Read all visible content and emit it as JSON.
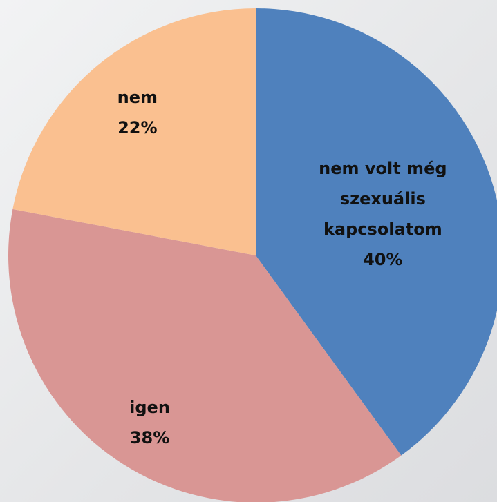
{
  "chart_data": {
    "type": "pie",
    "categories": [
      "nem volt még szexuális kapcsolatom",
      "igen",
      "nem"
    ],
    "values": [
      40,
      38,
      22
    ],
    "value_labels": [
      "40%",
      "38%",
      "22%"
    ],
    "colors": [
      "#4f81bd",
      "#d99694",
      "#fac090"
    ]
  }
}
